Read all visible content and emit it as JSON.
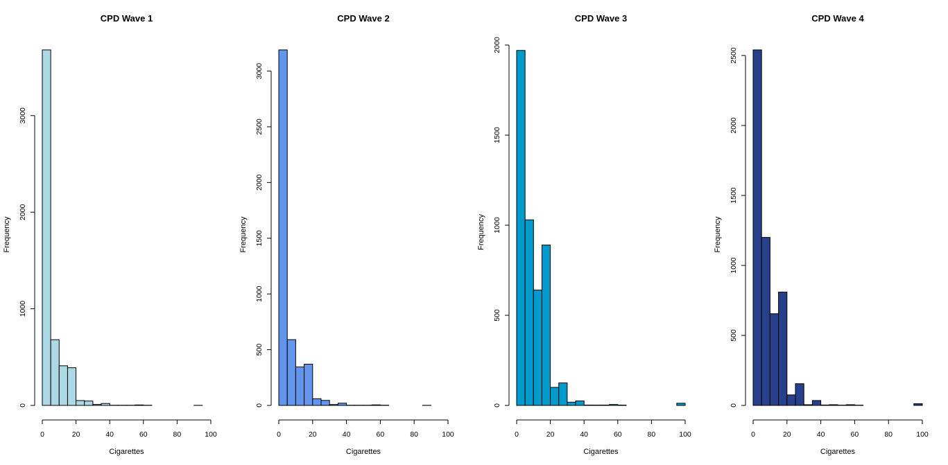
{
  "chart_data": [
    {
      "type": "bar",
      "title": "CPD Wave 1",
      "xlabel": "Cigarettes",
      "ylabel": "Frequency",
      "color": "#ADD8E6",
      "bin_width": 5,
      "bin_starts": [
        0,
        5,
        10,
        15,
        20,
        25,
        30,
        35,
        40,
        45,
        50,
        55,
        60,
        65,
        70,
        75,
        80,
        85,
        90
      ],
      "values": [
        3680,
        680,
        410,
        390,
        50,
        45,
        10,
        20,
        2,
        2,
        2,
        5,
        2,
        0,
        0,
        0,
        0,
        0,
        1
      ],
      "xlim": [
        0,
        100
      ],
      "ylim": [
        0,
        3680
      ],
      "xticks": [
        0,
        20,
        40,
        60,
        80,
        100
      ],
      "yticks": [
        0,
        1000,
        2000,
        3000
      ]
    },
    {
      "type": "bar",
      "title": "CPD Wave 2",
      "xlabel": "Cigarettes",
      "ylabel": "Frequency",
      "color": "#6495ED",
      "bin_width": 5,
      "bin_starts": [
        0,
        5,
        10,
        15,
        20,
        25,
        30,
        35,
        40,
        45,
        50,
        55,
        60,
        65,
        70,
        75,
        80,
        85
      ],
      "values": [
        3190,
        590,
        345,
        370,
        60,
        45,
        8,
        20,
        2,
        2,
        2,
        5,
        2,
        0,
        0,
        0,
        0,
        1
      ],
      "xlim": [
        0,
        100
      ],
      "ylim": [
        0,
        3190
      ],
      "xticks": [
        0,
        20,
        40,
        60,
        80,
        100
      ],
      "yticks": [
        0,
        500,
        1000,
        1500,
        2000,
        2500,
        3000
      ]
    },
    {
      "type": "bar",
      "title": "CPD Wave 3",
      "xlabel": "Cigarettes",
      "ylabel": "Frequency",
      "color": "#009ACD",
      "bin_width": 5,
      "bin_starts": [
        0,
        5,
        10,
        15,
        20,
        25,
        30,
        35,
        40,
        45,
        50,
        55,
        60,
        65,
        70,
        75,
        80,
        85,
        90,
        95
      ],
      "values": [
        1970,
        1030,
        640,
        890,
        100,
        125,
        18,
        25,
        2,
        2,
        2,
        5,
        2,
        0,
        0,
        0,
        0,
        0,
        0,
        12
      ],
      "xlim": [
        0,
        100
      ],
      "ylim": [
        0,
        2000
      ],
      "xticks": [
        0,
        20,
        40,
        60,
        80,
        100
      ],
      "yticks": [
        0,
        500,
        1000,
        1500,
        2000
      ]
    },
    {
      "type": "bar",
      "title": "CPD Wave 4",
      "xlabel": "Cigarettes",
      "ylabel": "Frequency",
      "color": "#27408B",
      "bin_width": 5,
      "bin_starts": [
        0,
        5,
        10,
        15,
        20,
        25,
        30,
        35,
        40,
        45,
        50,
        55,
        60,
        65,
        70,
        75,
        80,
        85,
        90,
        95
      ],
      "values": [
        2540,
        1200,
        655,
        810,
        75,
        155,
        5,
        35,
        3,
        5,
        2,
        5,
        2,
        0,
        0,
        0,
        0,
        0,
        0,
        12
      ],
      "xlim": [
        0,
        100
      ],
      "ylim": [
        0,
        2540
      ],
      "xticks": [
        0,
        20,
        40,
        60,
        80,
        100
      ],
      "yticks": [
        0,
        500,
        1000,
        1500,
        2000,
        2500
      ]
    }
  ]
}
